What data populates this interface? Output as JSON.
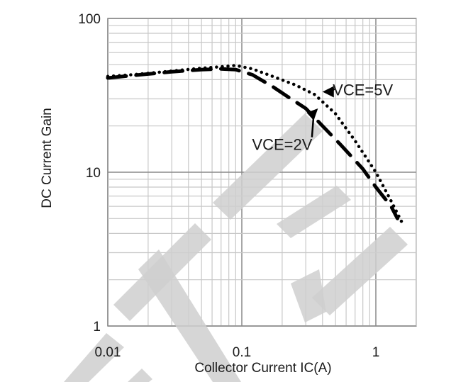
{
  "chart_data": {
    "type": "line",
    "xscale": "log",
    "yscale": "log",
    "xlim": [
      0.01,
      2
    ],
    "ylim": [
      1,
      100
    ],
    "xlabel": "Collector Current IC(A)",
    "ylabel": "DC Current Gain",
    "x_ticks": [
      {
        "value": 0.01,
        "label": "0.01"
      },
      {
        "value": 0.1,
        "label": "0.1"
      },
      {
        "value": 1,
        "label": "1"
      }
    ],
    "y_ticks": [
      {
        "value": 1,
        "label": "1"
      },
      {
        "value": 10,
        "label": "10"
      },
      {
        "value": 100,
        "label": "100"
      }
    ],
    "grid": true,
    "series": [
      {
        "name": "VCE=5V",
        "style": "dotted",
        "x": [
          0.01,
          0.015,
          0.02,
          0.03,
          0.05,
          0.07,
          0.09,
          0.12,
          0.17,
          0.25,
          0.35,
          0.5,
          0.7,
          1.0,
          1.3,
          1.55
        ],
        "y": [
          42,
          43,
          44,
          45.5,
          47.5,
          48.5,
          49.5,
          47,
          42,
          37,
          32,
          24,
          16,
          10,
          6.5,
          4.8
        ]
      },
      {
        "name": "VCE=2V",
        "style": "dashed",
        "x": [
          0.01,
          0.015,
          0.02,
          0.03,
          0.05,
          0.07,
          0.09,
          0.12,
          0.17,
          0.22,
          0.3,
          0.4,
          0.55,
          0.8,
          1.0,
          1.3,
          1.45
        ],
        "y": [
          41,
          42.5,
          43.5,
          45,
          46.5,
          47,
          46.5,
          43,
          36,
          31,
          26,
          20,
          15,
          10.5,
          8,
          6,
          5
        ]
      }
    ],
    "annotations": [
      {
        "text": "VCE=5V",
        "x": 0.8,
        "y": 34.5,
        "arrow_to": [
          0.4,
          33
        ]
      },
      {
        "text": "VCE=2V",
        "x": 0.2,
        "y": 18,
        "arrow_to": [
          0.37,
          26
        ]
      }
    ],
    "colors": {
      "line": "#000000",
      "grid": "#c8c8c8",
      "axis": "#8a8a8a",
      "watermark": "#cfcfcf"
    }
  }
}
